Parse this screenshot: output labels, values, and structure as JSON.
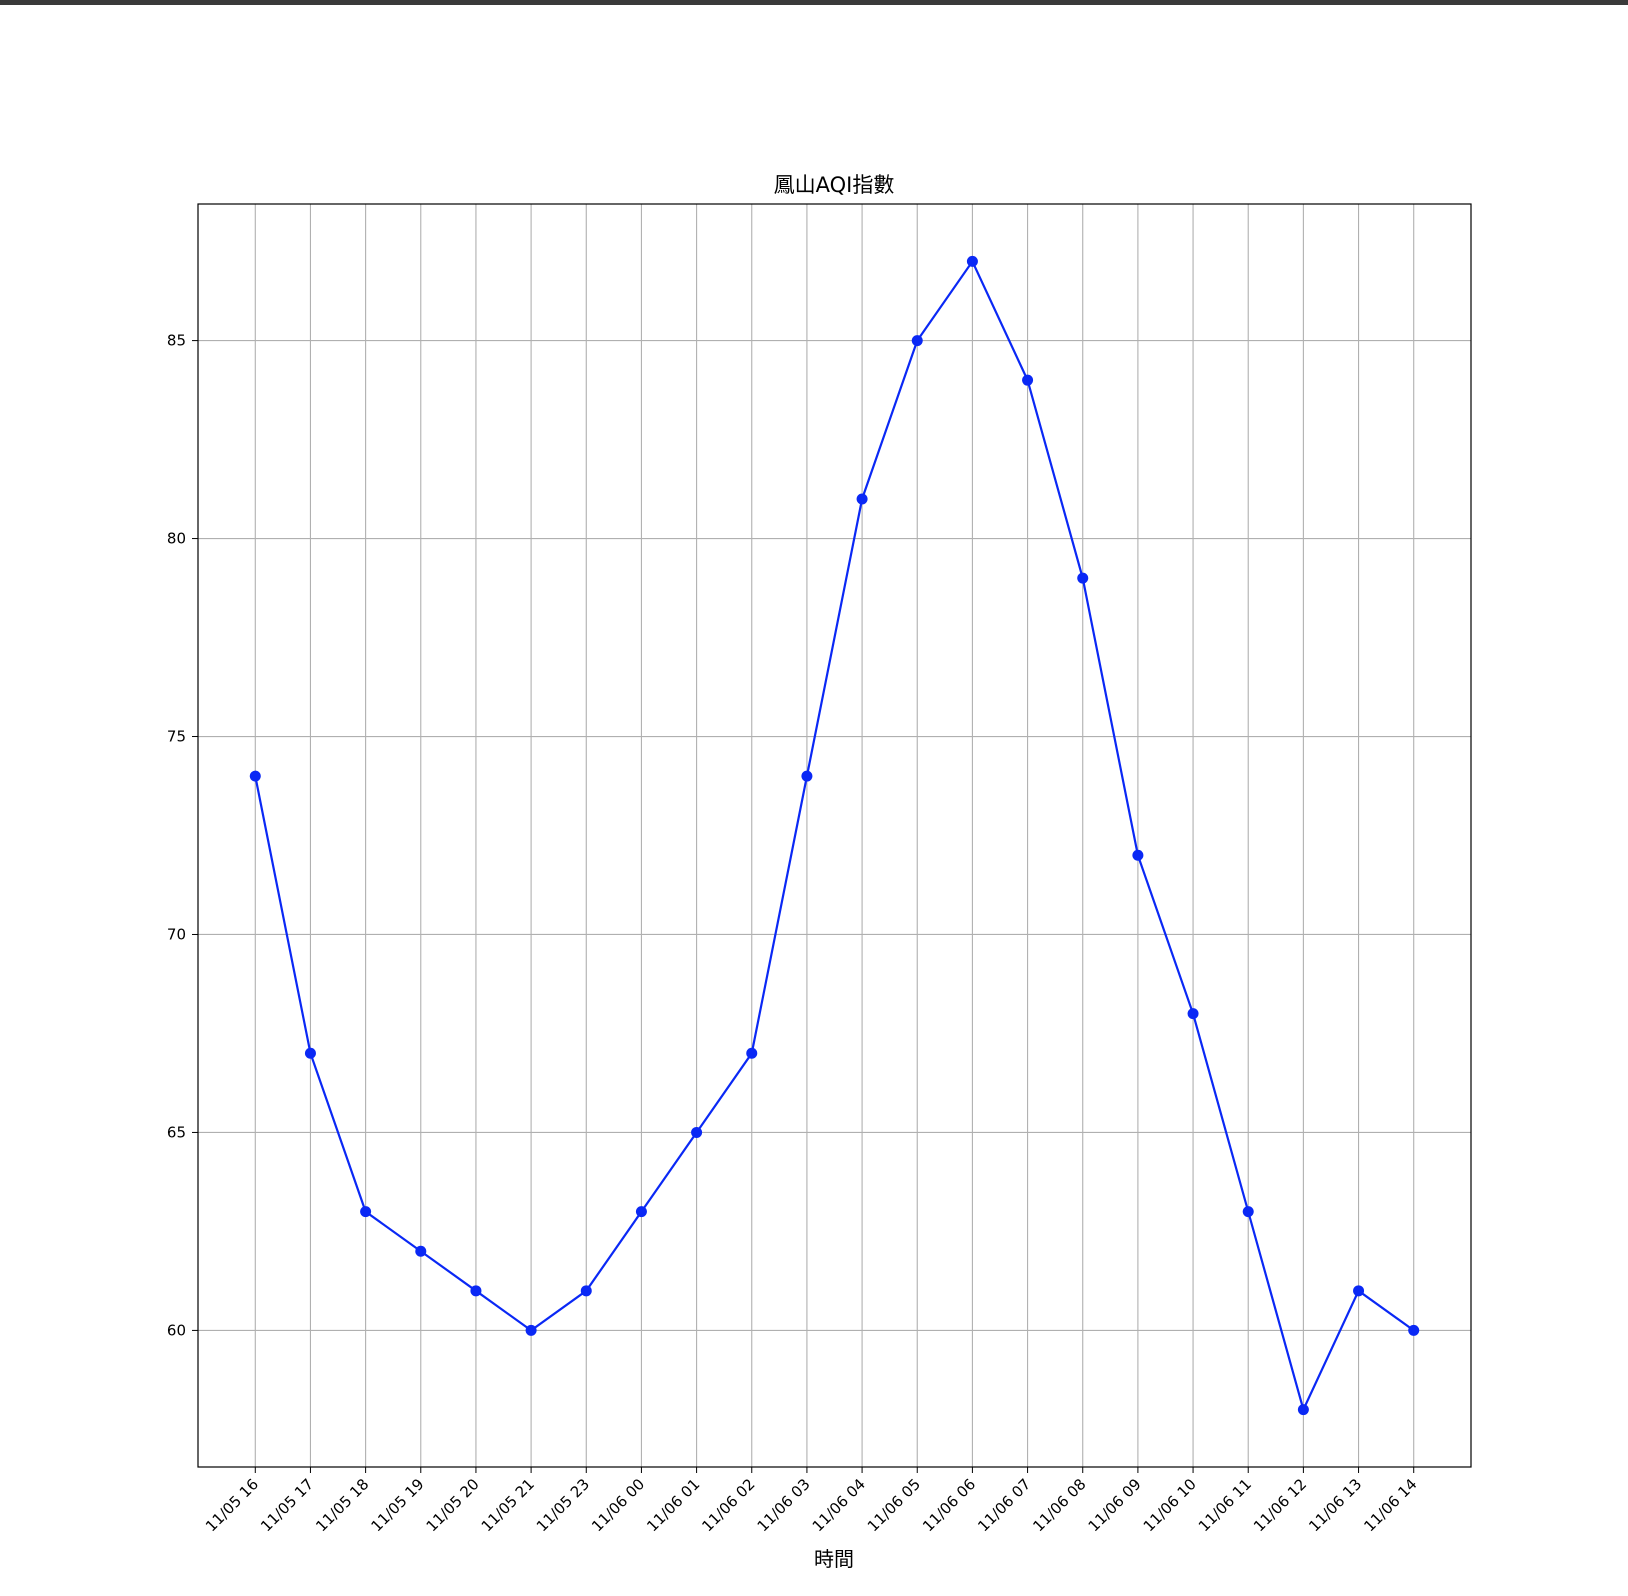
{
  "chart_data": {
    "type": "line",
    "title": "鳳山AQI指數",
    "xlabel": "時間",
    "ylabel": "",
    "categories": [
      "11/05 16",
      "11/05 17",
      "11/05 18",
      "11/05 19",
      "11/05 20",
      "11/05 21",
      "11/05 23",
      "11/06 00",
      "11/06 01",
      "11/06 02",
      "11/06 03",
      "11/06 04",
      "11/06 05",
      "11/06 06",
      "11/06 07",
      "11/06 08",
      "11/06 09",
      "11/06 10",
      "11/06 11",
      "11/06 12",
      "11/06 13",
      "11/06 14"
    ],
    "series": [
      {
        "values": [
          74,
          67,
          63,
          62,
          61,
          60,
          61,
          63,
          65,
          67,
          74,
          81,
          85,
          87,
          84,
          79,
          72,
          68,
          63,
          58,
          61,
          60
        ]
      }
    ],
    "ylim": [
      56.55,
      88.45
    ],
    "yticks": [
      60,
      65,
      70,
      75,
      80,
      85
    ],
    "grid": true,
    "line_color": "#0a28f5",
    "marker": "circle"
  }
}
